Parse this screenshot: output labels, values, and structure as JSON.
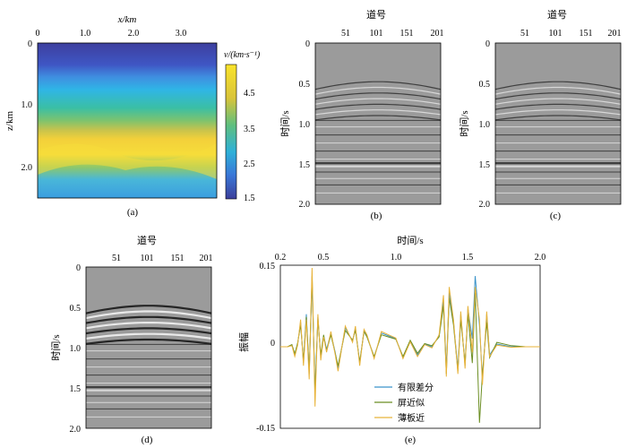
{
  "panel_a": {
    "xlabel": "x/km",
    "ylabel": "z/km",
    "xticks": [
      "0",
      "1.0",
      "2.0",
      "3.0"
    ],
    "yticks": [
      "0",
      "1.0",
      "2.0"
    ],
    "colorbar_label": "v/(km·s⁻¹)",
    "colorbar_ticks": [
      "4.5",
      "3.5",
      "2.5",
      "1.5"
    ],
    "caption": "(a)"
  },
  "gather_b": {
    "xlabel": "道号",
    "ylabel": "时间/s",
    "xticks": [
      "51",
      "101",
      "151",
      "201"
    ],
    "yticks": [
      "0",
      "0.5",
      "1.0",
      "1.5",
      "2.0"
    ],
    "caption": "(b)"
  },
  "gather_c": {
    "xlabel": "道号",
    "ylabel": "时间/s",
    "xticks": [
      "51",
      "101",
      "151",
      "201"
    ],
    "yticks": [
      "0",
      "0.5",
      "1.0",
      "1.5",
      "2.0"
    ],
    "caption": "(c)"
  },
  "gather_d": {
    "xlabel": "道号",
    "ylabel": "时间/s",
    "xticks": [
      "51",
      "101",
      "151",
      "201"
    ],
    "yticks": [
      "0",
      "0.5",
      "1.0",
      "1.5",
      "2.0"
    ],
    "caption": "(d)"
  },
  "panel_e": {
    "xlabel": "时间/s",
    "ylabel": "振幅",
    "caption": "(e)"
  },
  "chart_data": {
    "type": "line",
    "xlabel": "时间/s",
    "ylabel": "振幅",
    "xticks": [
      "0.2",
      "0.5",
      "1.0",
      "1.5",
      "2.0"
    ],
    "yticks": [
      "0.15",
      "0",
      "-0.15"
    ],
    "xlim": [
      0.2,
      2.0
    ],
    "ylim": [
      -0.15,
      0.15
    ],
    "legend_position": "bottom-center",
    "series": [
      {
        "name": "有限差分",
        "color": "#3a93c9",
        "x": [
          0.2,
          0.25,
          0.28,
          0.3,
          0.32,
          0.34,
          0.36,
          0.38,
          0.4,
          0.42,
          0.44,
          0.46,
          0.48,
          0.5,
          0.52,
          0.55,
          0.58,
          0.6,
          0.65,
          0.7,
          0.72,
          0.75,
          0.78,
          0.8,
          0.85,
          0.9,
          0.95,
          1.0,
          1.05,
          1.1,
          1.15,
          1.2,
          1.25,
          1.3,
          1.33,
          1.35,
          1.37,
          1.4,
          1.43,
          1.45,
          1.48,
          1.5,
          1.53,
          1.55,
          1.58,
          1.6,
          1.63,
          1.65,
          1.7,
          1.8,
          1.9,
          2.0
        ],
        "y": [
          0,
          0,
          0.003,
          -0.015,
          0.005,
          0.045,
          -0.03,
          0.06,
          -0.05,
          0.12,
          -0.08,
          0.055,
          -0.02,
          0.02,
          -0.005,
          0.025,
          -0.01,
          -0.04,
          0.035,
          0.01,
          0.035,
          -0.03,
          0.03,
          0.02,
          -0.02,
          0.025,
          0.02,
          0.015,
          -0.02,
          0.01,
          -0.015,
          0.005,
          0,
          0.02,
          0.085,
          -0.04,
          0.1,
          0.045,
          -0.04,
          0.06,
          -0.035,
          0.07,
          0.015,
          0.13,
          0.04,
          -0.06,
          0.06,
          -0.015,
          0.005,
          0,
          0,
          0
        ]
      },
      {
        "name": "屏近似",
        "color": "#6b8e23",
        "x": [
          0.2,
          0.25,
          0.28,
          0.3,
          0.32,
          0.34,
          0.36,
          0.38,
          0.4,
          0.42,
          0.44,
          0.46,
          0.48,
          0.5,
          0.52,
          0.55,
          0.58,
          0.6,
          0.65,
          0.7,
          0.72,
          0.75,
          0.78,
          0.8,
          0.85,
          0.9,
          0.95,
          1.0,
          1.05,
          1.1,
          1.15,
          1.2,
          1.25,
          1.3,
          1.33,
          1.35,
          1.37,
          1.4,
          1.43,
          1.45,
          1.48,
          1.5,
          1.53,
          1.55,
          1.58,
          1.6,
          1.63,
          1.65,
          1.7,
          1.8,
          1.9,
          2.0
        ],
        "y": [
          0,
          0,
          0.004,
          -0.013,
          0.007,
          0.04,
          -0.025,
          0.055,
          -0.045,
          0.13,
          -0.085,
          0.05,
          -0.015,
          0.022,
          -0.008,
          0.022,
          -0.012,
          -0.035,
          0.03,
          0.012,
          0.03,
          -0.028,
          0.028,
          0.018,
          -0.018,
          0.022,
          0.018,
          0.014,
          -0.018,
          0.012,
          -0.012,
          0.006,
          0.002,
          0.018,
          0.075,
          -0.05,
          0.09,
          0.04,
          -0.045,
          0.05,
          -0.03,
          0.06,
          -0.03,
          0.1,
          -0.14,
          -0.05,
          0.045,
          -0.02,
          0.008,
          0.002,
          0,
          0
        ]
      },
      {
        "name": "薄板近",
        "color": "#e8b33a",
        "x": [
          0.2,
          0.25,
          0.28,
          0.3,
          0.32,
          0.34,
          0.36,
          0.38,
          0.4,
          0.42,
          0.44,
          0.46,
          0.48,
          0.5,
          0.52,
          0.55,
          0.58,
          0.6,
          0.65,
          0.7,
          0.72,
          0.75,
          0.78,
          0.8,
          0.85,
          0.9,
          0.95,
          1.0,
          1.05,
          1.1,
          1.15,
          1.2,
          1.25,
          1.3,
          1.33,
          1.35,
          1.37,
          1.4,
          1.43,
          1.45,
          1.48,
          1.5,
          1.53,
          1.55,
          1.58,
          1.6,
          1.63,
          1.65,
          1.7,
          1.8,
          1.9,
          2.0
        ],
        "y": [
          0,
          0,
          0.002,
          -0.018,
          0.003,
          0.05,
          -0.035,
          0.05,
          -0.06,
          0.145,
          -0.11,
          0.06,
          -0.025,
          0.018,
          -0.01,
          0.028,
          -0.014,
          -0.045,
          0.038,
          0.008,
          0.038,
          -0.035,
          0.032,
          0.022,
          -0.022,
          0.028,
          0.022,
          0.016,
          -0.022,
          0.009,
          -0.018,
          0.004,
          -0.002,
          0.022,
          0.095,
          -0.055,
          0.11,
          0.05,
          -0.05,
          0.065,
          -0.04,
          0.075,
          -0.01,
          0.11,
          0.05,
          -0.07,
          0.065,
          -0.018,
          0.003,
          -0.001,
          0,
          0
        ]
      }
    ]
  }
}
